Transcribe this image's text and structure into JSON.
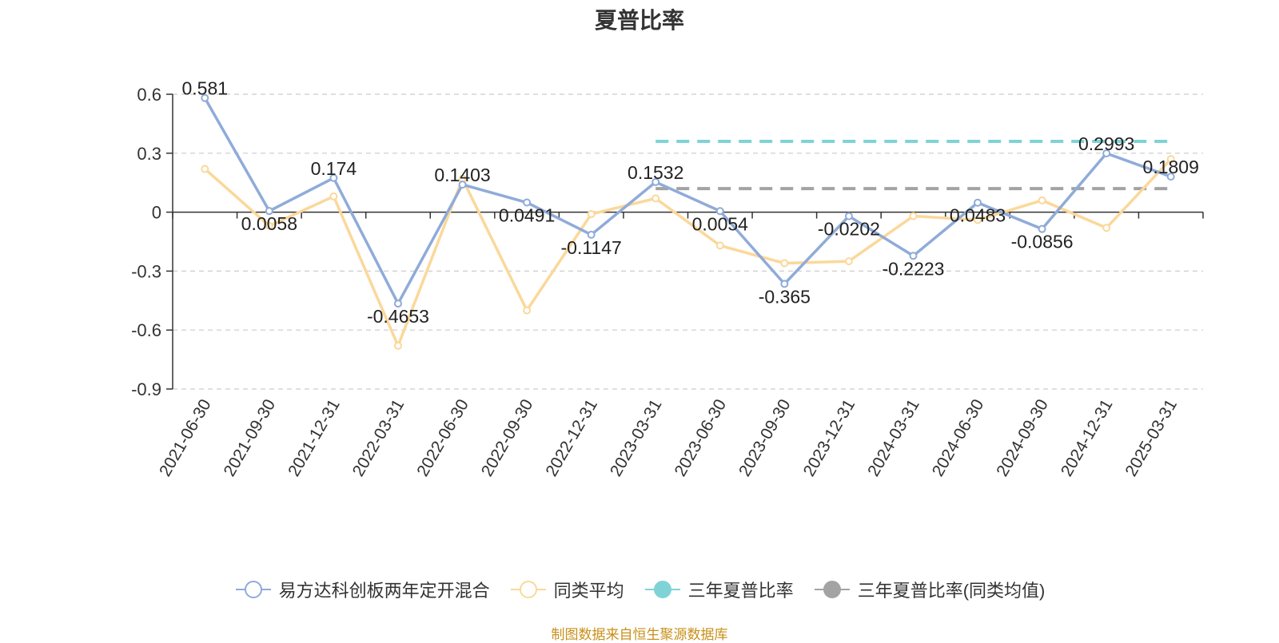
{
  "title": "夏普比率",
  "source": "制图数据来自恒生聚源数据库",
  "colors": {
    "fund": "#8fabd9",
    "peer": "#fbd89a",
    "three_year": "#7fd3d7",
    "three_year_peer": "#a3a3a3",
    "grid": "#cccccc",
    "axis": "#333333",
    "text": "#333333"
  },
  "legend": [
    {
      "label": "易方达科创板两年定开混合",
      "marker": "hollow-circle",
      "color": "#8fabd9"
    },
    {
      "label": "同类平均",
      "marker": "hollow-circle",
      "color": "#fbd89a"
    },
    {
      "label": "三年夏普比率",
      "marker": "filled-circle",
      "color": "#7fd3d7"
    },
    {
      "label": "三年夏普比率(同类均值)",
      "marker": "filled-circle",
      "color": "#a3a3a3"
    }
  ],
  "chart_data": {
    "type": "line",
    "title": "夏普比率",
    "categories": [
      "2021-06-30",
      "2021-09-30",
      "2021-12-31",
      "2022-03-31",
      "2022-06-30",
      "2022-09-30",
      "2022-12-31",
      "2023-03-31",
      "2023-06-30",
      "2023-09-30",
      "2023-12-31",
      "2024-03-31",
      "2024-06-30",
      "2024-09-30",
      "2024-12-31",
      "2025-03-31"
    ],
    "ylim": [
      -0.9,
      0.6
    ],
    "yticks": [
      0.6,
      0.3,
      0,
      -0.3,
      -0.6,
      -0.9
    ],
    "ytick_labels": [
      "0.6",
      "0.3",
      "0",
      "-0.3",
      "-0.6",
      "-0.9"
    ],
    "grid": true,
    "legend_position": "bottom",
    "series": [
      {
        "name": "易方达科创板两年定开混合",
        "values": [
          0.581,
          0.0058,
          0.174,
          -0.4653,
          0.1403,
          0.0491,
          -0.1147,
          0.1532,
          0.0054,
          -0.365,
          -0.0202,
          -0.2223,
          0.0483,
          -0.0856,
          0.2993,
          0.1809
        ],
        "labels": [
          "0.581",
          "0.0058",
          "0.174",
          "-0.4653",
          "0.1403",
          "0.0491",
          "-0.1147",
          "0.1532",
          "0.0054",
          "-0.365",
          "-0.0202",
          "-0.2223",
          "0.0483",
          "-0.0856",
          "0.2993",
          "0.1809"
        ]
      },
      {
        "name": "同类平均",
        "values": [
          0.22,
          -0.07,
          0.08,
          -0.68,
          0.17,
          -0.5,
          -0.01,
          0.07,
          -0.17,
          -0.26,
          -0.25,
          -0.02,
          -0.04,
          0.06,
          -0.08,
          0.27
        ]
      }
    ],
    "reference_lines": [
      {
        "name": "三年夏普比率",
        "value": 0.36,
        "from": "2023-03-31",
        "to": "2025-03-31",
        "style": "dashed"
      },
      {
        "name": "三年夏普比率(同类均值)",
        "value": 0.12,
        "from": "2023-03-31",
        "to": "2025-03-31",
        "style": "dashed"
      }
    ]
  }
}
